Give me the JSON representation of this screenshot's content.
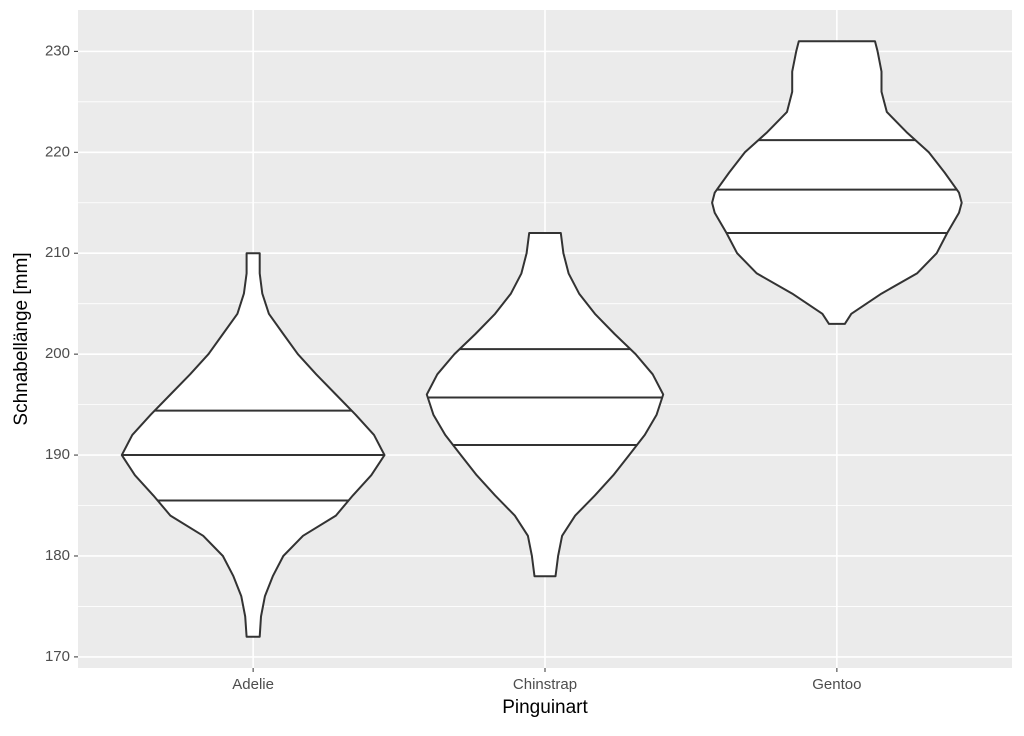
{
  "chart_data": {
    "type": "violin",
    "x_label": "Pinguinart",
    "y_label": "Schnabellänge [mm]",
    "categories": [
      "Adelie",
      "Chinstrap",
      "Gentoo"
    ],
    "ylim": [
      168.9,
      234.1
    ],
    "yticks": [
      170,
      180,
      190,
      200,
      210,
      220,
      230
    ],
    "y_minor_ticks": [
      175,
      185,
      195,
      205,
      215,
      225
    ],
    "grid": true,
    "fill": "#ffffff",
    "line_color": "#333333",
    "series": [
      {
        "name": "Adelie",
        "quartiles": [
          185.5,
          190,
          194.4
        ],
        "density": {
          "y": [
            172,
            174,
            176,
            178,
            180,
            182,
            184,
            186,
            188,
            190,
            192,
            194,
            196,
            198,
            200,
            202,
            204,
            206,
            208,
            210
          ],
          "width": [
            0.05,
            0.06,
            0.09,
            0.15,
            0.23,
            0.38,
            0.63,
            0.76,
            0.9,
            1.0,
            0.92,
            0.78,
            0.63,
            0.48,
            0.34,
            0.23,
            0.12,
            0.07,
            0.05,
            0.05
          ]
        }
      },
      {
        "name": "Chinstrap",
        "quartiles": [
          191,
          195.7,
          200.5
        ],
        "density": {
          "y": [
            178,
            180,
            182,
            184,
            186,
            188,
            190,
            192,
            194,
            196,
            198,
            200,
            202,
            204,
            206,
            208,
            210,
            212
          ],
          "width": [
            0.08,
            0.1,
            0.13,
            0.23,
            0.38,
            0.52,
            0.64,
            0.76,
            0.85,
            0.9,
            0.82,
            0.69,
            0.53,
            0.38,
            0.26,
            0.18,
            0.14,
            0.12
          ]
        }
      },
      {
        "name": "Gentoo",
        "quartiles": [
          212,
          216.3,
          221.2
        ],
        "density": {
          "y": [
            203,
            204,
            206,
            208,
            210,
            212,
            214,
            215,
            216,
            218,
            220,
            222,
            224,
            226,
            228,
            230,
            231
          ],
          "width": [
            0.06,
            0.11,
            0.34,
            0.61,
            0.76,
            0.84,
            0.93,
            0.95,
            0.93,
            0.82,
            0.7,
            0.53,
            0.38,
            0.34,
            0.34,
            0.31,
            0.29
          ]
        }
      }
    ]
  }
}
